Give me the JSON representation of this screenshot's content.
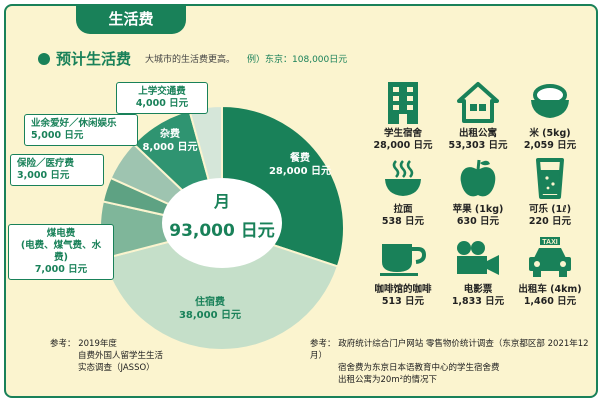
{
  "header": {
    "tab_title": "生活费"
  },
  "section": {
    "title": "预计生活费",
    "subtitle": "大城市的生活费更高。",
    "example": "例）东京：108,000日元"
  },
  "chart_data": {
    "type": "pie",
    "center_label": "月",
    "total_label": "93,000 日元",
    "unit": "日元",
    "slices": [
      {
        "label": "餐费",
        "value": 28000,
        "value_label": "28,000 日元",
        "color": "#198159"
      },
      {
        "label": "住宿费",
        "value": 38000,
        "value_label": "38,000 日元",
        "color": "#c5dfc9"
      },
      {
        "label": "煤电费(电费、煤气费、水费)",
        "value": 7000,
        "value_label": "7,000 日元",
        "color": "#7fb69a"
      },
      {
        "label": "保险／医疗费",
        "value": 3000,
        "value_label": "3,000 日元",
        "color": "#5ea283"
      },
      {
        "label": "业余爱好／休闲娱乐",
        "value": 5000,
        "value_label": "5,000 日元",
        "color": "#9ec4b0"
      },
      {
        "label": "杂费",
        "value": 8000,
        "value_label": "8,000 日元",
        "color": "#2f9471"
      },
      {
        "label": "上学交通费",
        "value": 4000,
        "value_label": "4,000 日元",
        "color": "#d5e6d9"
      }
    ]
  },
  "callouts": {
    "transport": {
      "name": "上学交通费",
      "value": "4,000 日元"
    },
    "hobby": {
      "name": "业余爱好／休闲娱乐",
      "value": "5,000 日元"
    },
    "insurance": {
      "name": "保险／医疗费",
      "value": "3,000 日元"
    },
    "utilities": {
      "name": "煤电费",
      "detail": "(电费、煤气费、水费)",
      "value": "7,000 日元"
    }
  },
  "slice_labels": {
    "food": {
      "name": "餐费",
      "value": "28,000 日元"
    },
    "housing": {
      "name": "住宿费",
      "value": "38,000 日元"
    },
    "misc": {
      "name": "杂费",
      "value": "8,000 日元"
    }
  },
  "prices": [
    {
      "icon": "building-icon",
      "name": "学生宿舍",
      "price": "28,000 日元"
    },
    {
      "icon": "house-icon",
      "name": "出租公寓",
      "price": "53,303 日元"
    },
    {
      "icon": "rice-bowl-icon",
      "name": "米 (5kg)",
      "price": "2,059 日元"
    },
    {
      "icon": "ramen-icon",
      "name": "拉面",
      "price": "538 日元"
    },
    {
      "icon": "apple-icon",
      "name": "苹果 (1kg)",
      "price": "630 日元"
    },
    {
      "icon": "cola-icon",
      "name": "可乐 (1ℓ)",
      "price": "220 日元"
    },
    {
      "icon": "coffee-cup-icon",
      "name": "咖啡馆的咖啡",
      "price": "513 日元"
    },
    {
      "icon": "movie-camera-icon",
      "name": "电影票",
      "price": "1,833 日元"
    },
    {
      "icon": "taxi-icon",
      "name": "出租车 (4km)",
      "price": "1,460 日元"
    }
  ],
  "taxi_sign": "TAXI",
  "notes": {
    "left": {
      "label": "参考：",
      "lines": [
        "2019年度",
        "自费外国人留学生生活",
        "实态调查（JASSO）"
      ]
    },
    "right": {
      "label": "参考：",
      "lines": [
        "政府统计综合门户网站 零售物价统计调查（东京都区部 2021年12月）",
        "宿舍费为东京日本语教育中心的学生宿舍费",
        "出租公寓为20m²的情况下"
      ]
    }
  },
  "colors": {
    "brand_green": "#198159",
    "background": "#fbf4cf"
  }
}
